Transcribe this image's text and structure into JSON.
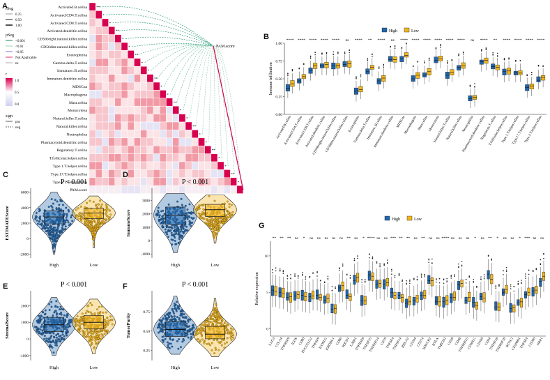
{
  "colors": {
    "high": "#2166ac",
    "low": "#f2b51a",
    "accent": "#d6004f",
    "green": "#2e9d79",
    "heat_mid": "#f6c6c6",
    "heat_hi": "#e03040"
  },
  "panel_labels": [
    "A",
    "B",
    "C",
    "D",
    "E",
    "F",
    "G"
  ],
  "panel_a": {
    "legend_rseg": {
      "title": "rSeg",
      "items": [
        "0.25",
        "0.50",
        "1.00"
      ]
    },
    "legend_pseg": {
      "title": "pSeg",
      "items": [
        "<0.001",
        "<0.01",
        "<0.05",
        "Not Applicable",
        "ns"
      ]
    },
    "legend_r": {
      "title": "r",
      "ticks": [
        "1.0",
        "0.5",
        "0.0"
      ]
    },
    "legend_sign": {
      "title": "sign",
      "items": [
        "pos",
        "neg"
      ]
    },
    "rows": [
      "Activated.B.cellna",
      "Activated.CD4.T.cellna",
      "Activated.CD8.T.cellna",
      "Activated.dendritic.cellna",
      "CD56bright.natural.killer.cellna",
      "CD56dim.natural.killer.cellna",
      "Eosinophilna",
      "Gamma.delta.T.cellna",
      "Immature..B.cellna",
      "Immature.dendritic.cellna",
      "MDSCna",
      "Macrophagena",
      "Mast.cellna",
      "Monocytena",
      "Natural.killer.T.cellna",
      "Natural.killer.cellna",
      "Neutrophilna",
      "Plasmacytoid.dendritic.cellna",
      "Regulatory.T.cellna",
      "T.follicular.helper.cellna",
      "Type.1.T.helper.cellna",
      "Type.17.T.helper.cellna",
      "Type.2.T.helper.cellna",
      "PAM.score"
    ],
    "pam_label": "PAM.score"
  },
  "chart_data": [
    {
      "id": "B",
      "type": "box",
      "title": "",
      "legend": [
        "High",
        "Low"
      ],
      "ylabel": "Immune infiltration",
      "ylim": [
        0,
        1.0
      ],
      "yticks": [
        "0.00",
        "0.25",
        "0.50",
        "0.75",
        "1.00"
      ],
      "categories": [
        "Activated.B.cellna",
        "Activated.CD4.T.cellna",
        "Activated.CD8.T.cellna",
        "Activated.dendritic.cellna",
        "CD56bright.natural.killer.cellna",
        "CD56dim.natural.killer.cellna",
        "Eosinophilna",
        "Gamma.delta.T.cellna",
        "Immature..B.cellna",
        "Immature.dendritic.cellna",
        "MDSCna",
        "Macrophagena",
        "Mast.cellna",
        "Monocytena",
        "Natural.killer.T.cellna",
        "Natural.killer.cellna",
        "Neutrophilna",
        "Plasmacytoid.dendritic.cellna",
        "Regulatory.T.cellna",
        "T.follicular.helper.cellna",
        "Type.1.T.helper.cellna",
        "Type.17.T.helper.cellna",
        "Type.2.T.helper.cellna"
      ],
      "sig": [
        "****",
        "****",
        "****",
        "****",
        "****",
        "ns",
        "****",
        "**",
        "****",
        "ns",
        "****",
        "****",
        "****",
        "****",
        "****",
        "****",
        "ns",
        "****",
        "**",
        "****",
        "****",
        "****",
        "****"
      ],
      "high_median": [
        0.37,
        0.47,
        0.62,
        0.68,
        0.68,
        0.7,
        0.33,
        0.6,
        0.47,
        0.77,
        0.78,
        0.5,
        0.55,
        0.76,
        0.55,
        0.66,
        0.22,
        0.74,
        0.67,
        0.6,
        0.58,
        0.38,
        0.48
      ],
      "low_median": [
        0.43,
        0.53,
        0.68,
        0.7,
        0.69,
        0.71,
        0.35,
        0.66,
        0.51,
        0.77,
        0.83,
        0.55,
        0.6,
        0.78,
        0.59,
        0.68,
        0.24,
        0.76,
        0.66,
        0.61,
        0.58,
        0.4,
        0.52
      ]
    },
    {
      "id": "C",
      "type": "violin-box",
      "title": "P < 0.001",
      "ylabel": "ESTIMATEScore",
      "categories": [
        "High",
        "Low"
      ],
      "ylim": [
        -2500,
        6500
      ],
      "yticks": [
        "-2000",
        "0",
        "2000",
        "4000",
        "6000"
      ],
      "median": [
        2800,
        3300
      ],
      "q1": [
        1900,
        2600
      ],
      "q3": [
        3600,
        3900
      ],
      "min": [
        -2000,
        -1200
      ],
      "max": [
        6000,
        5500
      ]
    },
    {
      "id": "D",
      "type": "violin-box",
      "title": "P < 0.001",
      "ylabel": "ImmuneScore",
      "categories": [
        "High",
        "Low"
      ],
      "ylim": [
        -1300,
        3900
      ],
      "yticks": [
        "-1000",
        "0",
        "1000",
        "2000",
        "3000"
      ],
      "median": [
        1900,
        2300
      ],
      "q1": [
        1200,
        1800
      ],
      "q3": [
        2500,
        2700
      ],
      "min": [
        -900,
        -200
      ],
      "max": [
        3500,
        3400
      ]
    },
    {
      "id": "E",
      "type": "violin-box",
      "title": "P < 0.001",
      "ylabel": "StromalScore",
      "categories": [
        "High",
        "Low"
      ],
      "ylim": [
        -1300,
        2900
      ],
      "yticks": [
        "-1000",
        "0",
        "1000",
        "2000"
      ],
      "median": [
        850,
        1000
      ],
      "q1": [
        450,
        600
      ],
      "q3": [
        1300,
        1400
      ],
      "min": [
        -1000,
        -900
      ],
      "max": [
        2500,
        2400
      ]
    },
    {
      "id": "F",
      "type": "violin-box",
      "title": "P < 0.001",
      "ylabel": "TumorPurity",
      "categories": [
        "High",
        "Low"
      ],
      "ylim": [
        0.12,
        1.02
      ],
      "yticks": [
        "0.25",
        "0.50",
        "0.75"
      ],
      "median": [
        0.52,
        0.46
      ],
      "q1": [
        0.43,
        0.4
      ],
      "q3": [
        0.62,
        0.56
      ],
      "min": [
        0.2,
        0.17
      ],
      "max": [
        0.95,
        0.92
      ]
    },
    {
      "id": "G",
      "type": "box",
      "legend": [
        "High",
        "Low"
      ],
      "ylabel": "Relative expression",
      "ylim": [
        -1,
        12
      ],
      "yticks": [
        "0",
        "5",
        "10"
      ],
      "categories": [
        "LAG3",
        "CTLA4",
        "TNFRSF9",
        "ICOS",
        "CD80",
        "PDCD1LG2",
        "TNFSF9",
        "ICOSLG",
        "KIR3DL1",
        "CD86",
        "PDCD1",
        "LAIR1",
        "TNFRSF8",
        "TNFSF15",
        "TNFRSF14",
        "CD70",
        "TNFSF4",
        "TNFSF14",
        "HHLA2",
        "CD244",
        "CD274",
        "HAVCR2",
        "BTLA",
        "TMIGD2",
        "CD28",
        "CD48",
        "TNFRSF25",
        "CD40LG",
        "CD160",
        "CD44",
        "TNFSF18",
        "TNFRSF18",
        "BTNL2",
        "CD200R1",
        "TNFSF4",
        "CD200",
        "NRP1"
      ],
      "sig": [
        "**",
        "**",
        "**",
        "ns",
        "*",
        "ns",
        "ns",
        "ns",
        "ns",
        "ns",
        "**",
        "ns",
        "*",
        "****",
        "ns",
        "ns",
        "***",
        "**",
        "**",
        "ns",
        "**",
        "ns",
        "ns",
        "****",
        "ns",
        "ns",
        "ns",
        "*",
        "ns",
        "**",
        "*",
        "ns",
        "ns",
        "*",
        "***",
        "ns",
        "ns"
      ],
      "high_median": [
        5.3,
        5.0,
        4.3,
        4.5,
        4.6,
        4.4,
        4.6,
        3.9,
        2.7,
        5.6,
        4.6,
        6.6,
        3.9,
        7.4,
        6.1,
        6.1,
        5.0,
        4.6,
        3.5,
        3.9,
        4.6,
        6.6,
        3.7,
        3.7,
        4.3,
        6.0,
        3.9,
        3.6,
        4.4,
        7.5,
        3.0,
        5.0,
        2.8,
        3.6,
        4.7,
        5.2,
        6.5
      ],
      "low_median": [
        5.1,
        4.8,
        4.4,
        4.7,
        4.4,
        4.5,
        4.3,
        4.1,
        2.8,
        5.9,
        4.4,
        7.0,
        3.8,
        7.2,
        6.2,
        6.3,
        4.6,
        4.3,
        3.7,
        4.2,
        4.6,
        6.6,
        3.7,
        3.9,
        4.3,
        6.2,
        4.3,
        3.2,
        4.2,
        6.8,
        3.0,
        5.4,
        2.9,
        3.7,
        5.0,
        5.3,
        7.2
      ]
    }
  ]
}
